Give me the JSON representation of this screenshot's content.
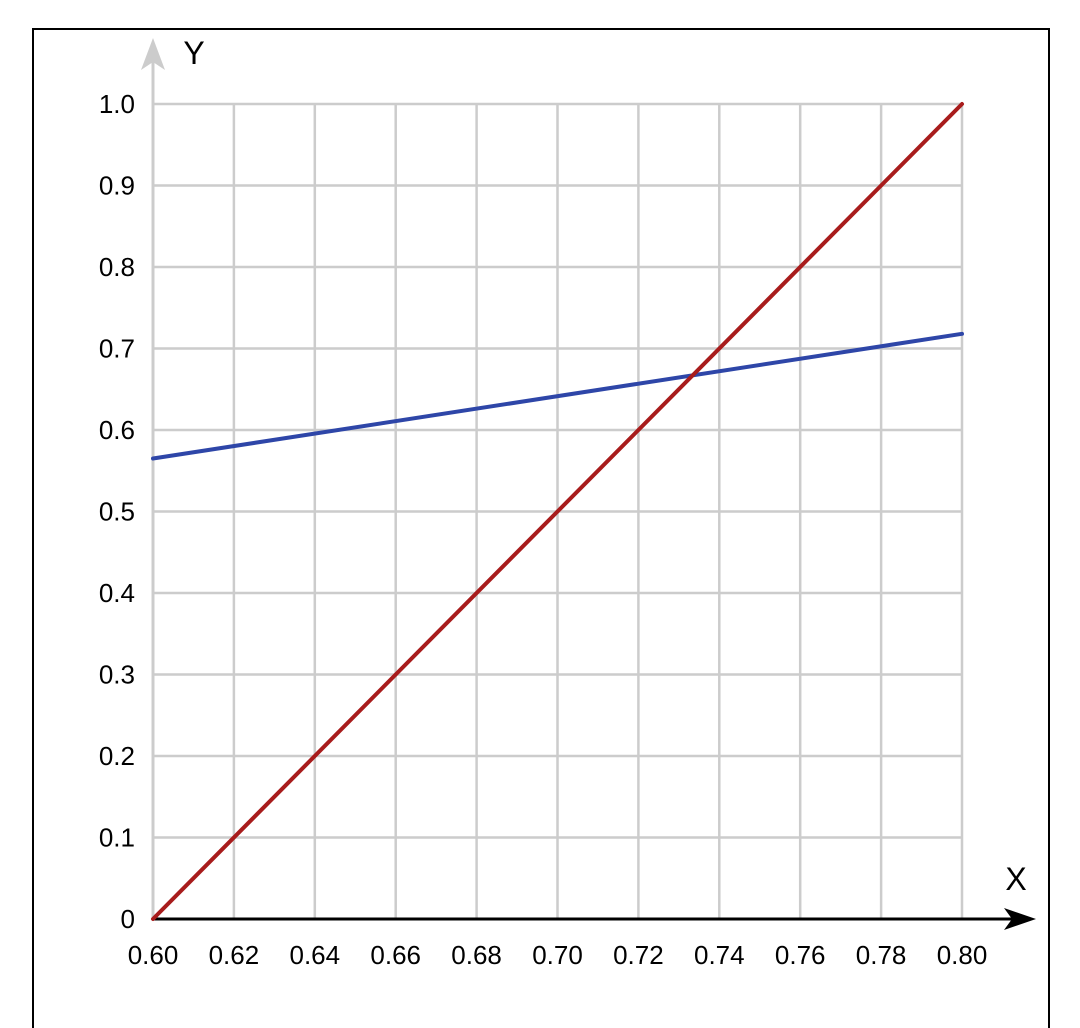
{
  "chart_data": {
    "type": "line",
    "xlabel": "X",
    "ylabel": "Y",
    "xlim": [
      0.6,
      0.8
    ],
    "ylim": [
      0,
      1.0
    ],
    "x_ticks": [
      "0.60",
      "0.62",
      "0.64",
      "0.66",
      "0.68",
      "0.70",
      "0.72",
      "0.74",
      "0.76",
      "0.78",
      "0.80"
    ],
    "y_ticks": [
      "0",
      "0.1",
      "0.2",
      "0.3",
      "0.4",
      "0.5",
      "0.6",
      "0.7",
      "0.8",
      "0.9",
      "1.0"
    ],
    "grid": true,
    "series": [
      {
        "color": "#2e46a8",
        "x": [
          0.6,
          0.8
        ],
        "y": [
          0.565,
          0.718
        ]
      },
      {
        "color": "#a81c1c",
        "x": [
          0.6,
          0.8
        ],
        "y": [
          0.0,
          1.0
        ]
      }
    ],
    "colors": {
      "grid": "#cccccc",
      "axis": "#000000",
      "y_axis": "#cccccc"
    }
  }
}
